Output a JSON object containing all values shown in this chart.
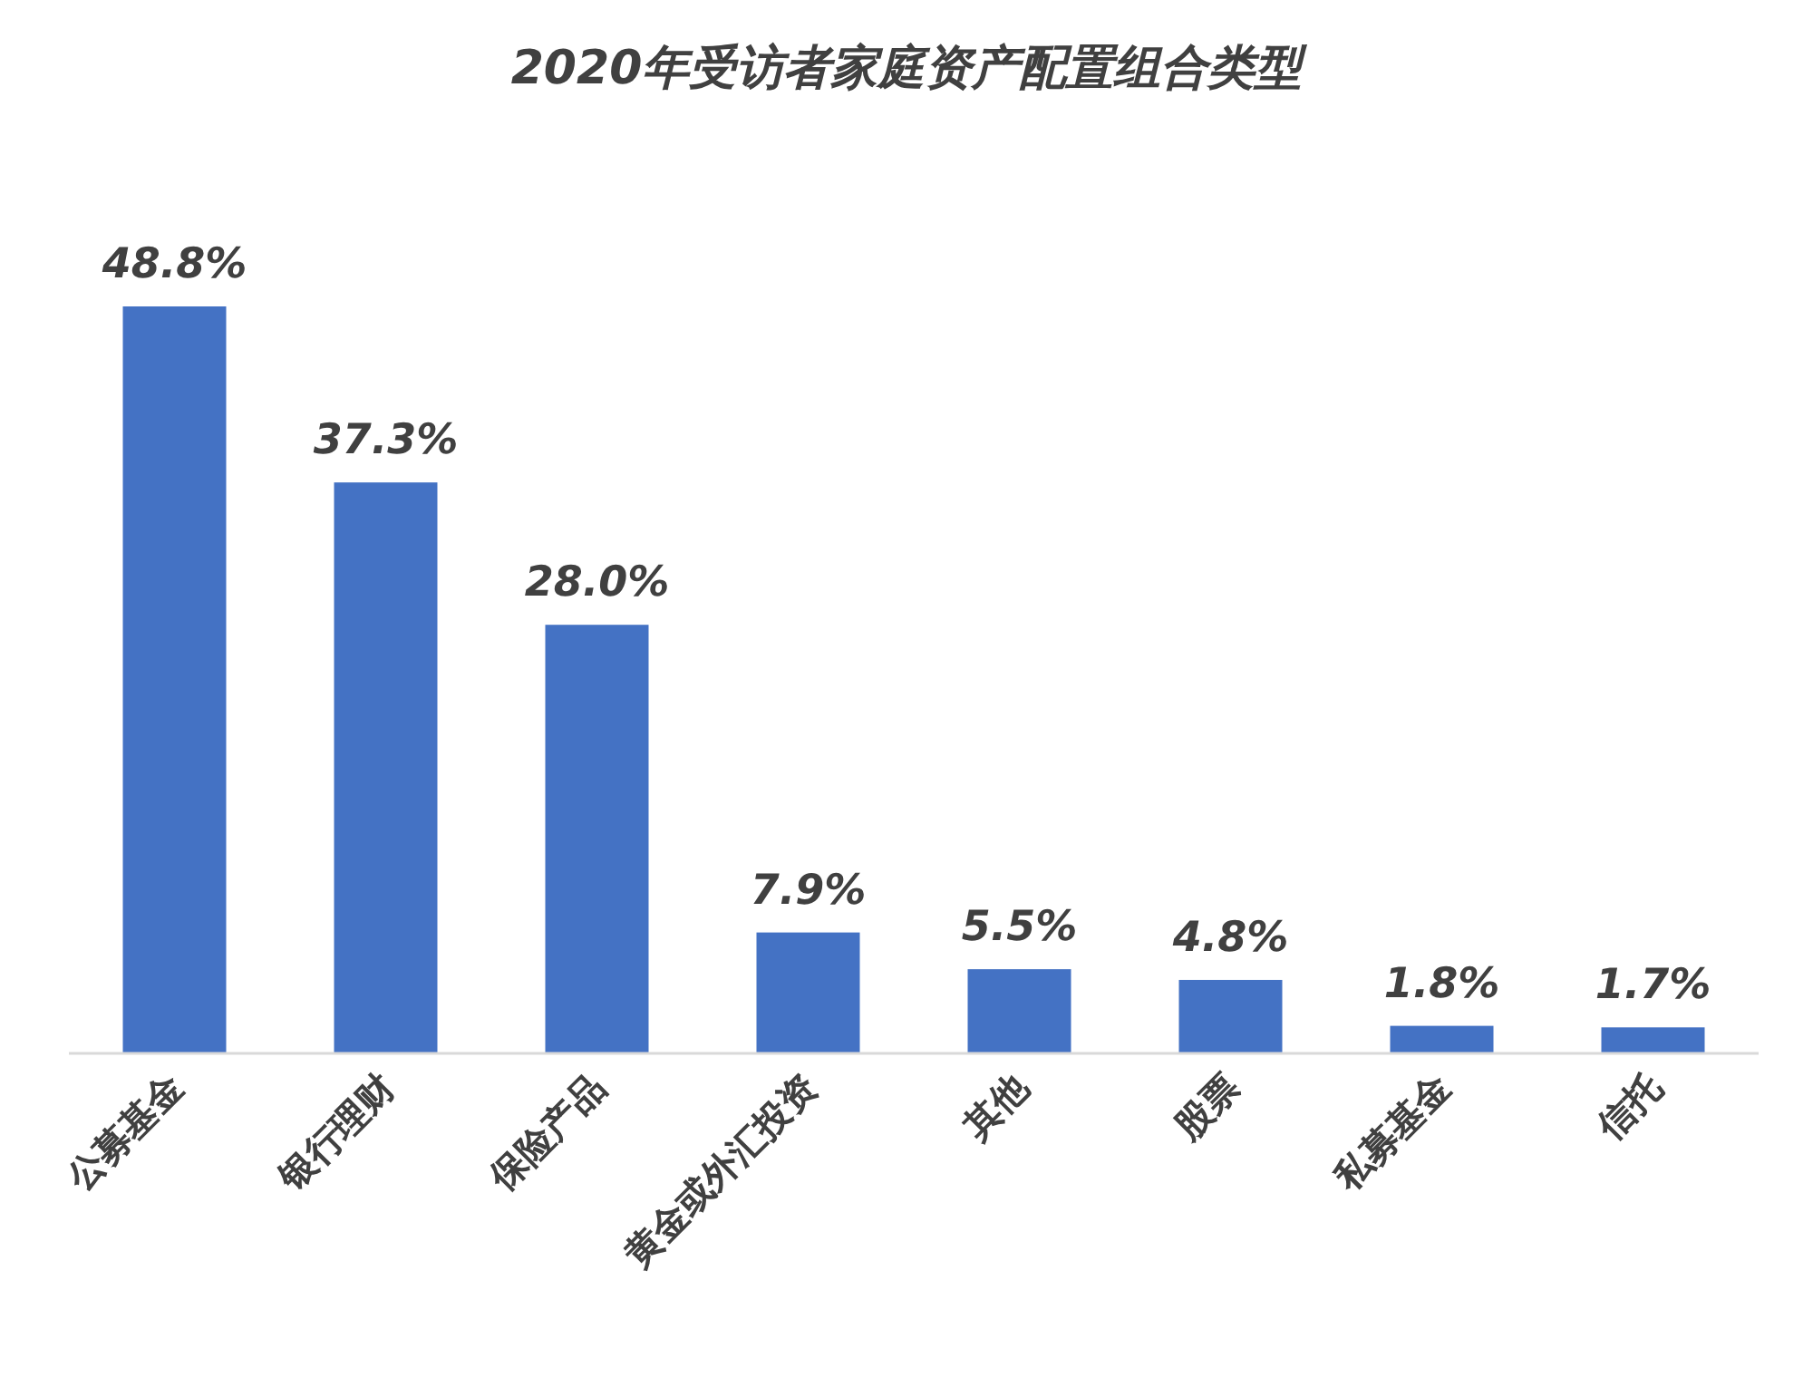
{
  "chart_data": {
    "type": "bar",
    "title": "2020年受访者家庭资产配置组合类型",
    "categories": [
      "公募基金",
      "银行理财",
      "保险产品",
      "黄金或外汇投资",
      "其他",
      "股票",
      "私募基金",
      "信托"
    ],
    "values": [
      48.8,
      37.3,
      28.0,
      7.9,
      5.5,
      4.8,
      1.8,
      1.7
    ],
    "value_labels": [
      "48.8%",
      "37.3%",
      "28.0%",
      "7.9%",
      "5.5%",
      "4.8%",
      "1.8%",
      "1.7%"
    ],
    "color": "#4472c4"
  }
}
